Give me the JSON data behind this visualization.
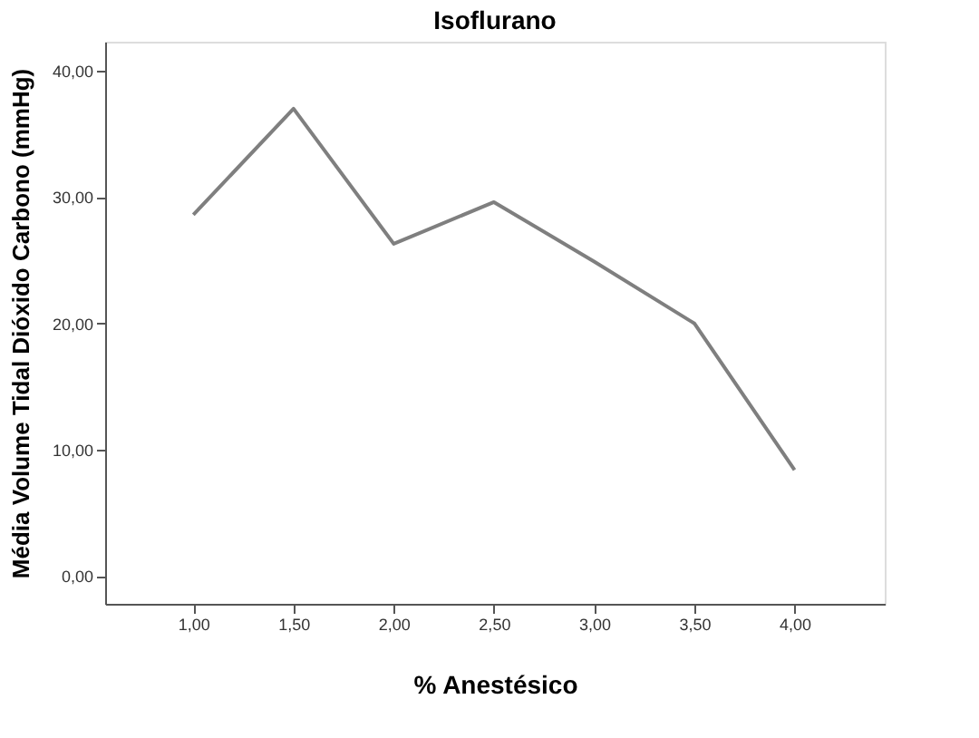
{
  "chart_data": {
    "type": "line",
    "title": "Isoflurano",
    "xlabel": "% Anestésico",
    "ylabel": "Média Volume Tidal Dióxido Carbono (mmHg)",
    "x": [
      1.0,
      1.5,
      2.0,
      2.5,
      3.0,
      3.5,
      4.0
    ],
    "series": [
      {
        "color": "#7f7f7f",
        "values": [
          28.6,
          37.0,
          26.3,
          29.6,
          24.9,
          20.0,
          8.4
        ]
      }
    ],
    "xlim": [
      0.56,
      4.45
    ],
    "ylim": [
      -2.2,
      42.3
    ],
    "xticks": [
      {
        "value": 1.0,
        "label": "1,00"
      },
      {
        "value": 1.5,
        "label": "1,50"
      },
      {
        "value": 2.0,
        "label": "2,00"
      },
      {
        "value": 2.5,
        "label": "2,50"
      },
      {
        "value": 3.0,
        "label": "3,00"
      },
      {
        "value": 3.5,
        "label": "3,50"
      },
      {
        "value": 4.0,
        "label": "4,00"
      }
    ],
    "yticks": [
      {
        "value": 0,
        "label": "0,00"
      },
      {
        "value": 10,
        "label": "10,00"
      },
      {
        "value": 20,
        "label": "20,00"
      },
      {
        "value": 30,
        "label": "30,00"
      },
      {
        "value": 40,
        "label": "40,00"
      }
    ],
    "grid": false,
    "legend": false,
    "marker": "none",
    "line_style": "solid"
  }
}
